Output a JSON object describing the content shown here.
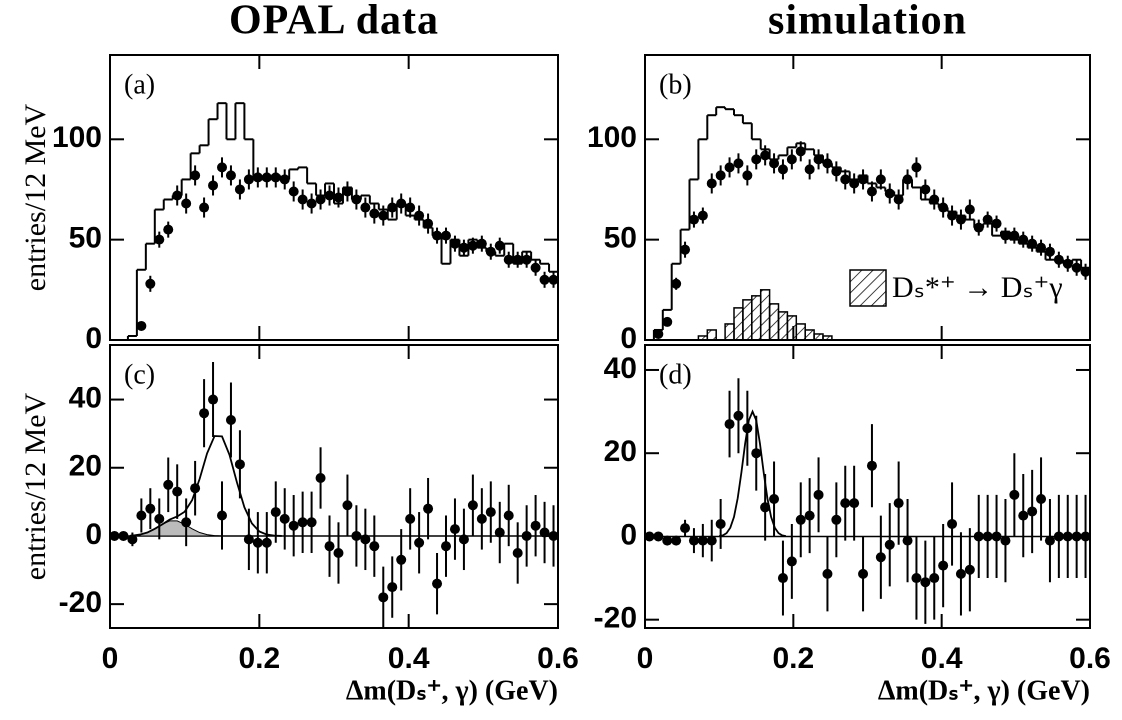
{
  "chart_data": [
    {
      "type": "step",
      "title": "OPAL data",
      "label": "(a)",
      "ylabel": "entries/12 MeV",
      "xlim": [
        0,
        0.6
      ],
      "xticks": [
        0,
        0.2,
        0.4,
        0.6
      ],
      "ylim": [
        0,
        142
      ],
      "yticks": [
        0,
        50,
        100
      ],
      "bins": [
        0,
        0.012,
        0.024,
        0.036,
        0.048,
        0.06,
        0.072,
        0.084,
        0.096,
        0.108,
        0.12,
        0.132,
        0.144,
        0.156,
        0.168,
        0.18,
        0.192,
        0.204,
        0.216,
        0.228,
        0.24,
        0.252,
        0.264,
        0.276,
        0.288,
        0.3,
        0.312,
        0.324,
        0.336,
        0.348,
        0.36,
        0.372,
        0.384,
        0.396,
        0.408,
        0.42,
        0.432,
        0.444,
        0.456,
        0.468,
        0.48,
        0.492,
        0.504,
        0.516,
        0.528,
        0.54,
        0.552,
        0.564,
        0.576,
        0.588,
        0.6
      ],
      "points": [
        null,
        null,
        null,
        7,
        28,
        50,
        55,
        72,
        68,
        82,
        66,
        77,
        86,
        82,
        75,
        80,
        81,
        81,
        81,
        80,
        74,
        70,
        68,
        70,
        72,
        71,
        74,
        70,
        66,
        63,
        62,
        66,
        68,
        66,
        62,
        58,
        52,
        52,
        48,
        46,
        47,
        48,
        44,
        47,
        40,
        40,
        40,
        36,
        30,
        30
      ],
      "errors": [
        null,
        null,
        null,
        2,
        4,
        4,
        4,
        5,
        5,
        5,
        5,
        5,
        5,
        5,
        5,
        5,
        5,
        5,
        5,
        5,
        5,
        5,
        5,
        5,
        5,
        5,
        5,
        5,
        5,
        5,
        5,
        5,
        5,
        5,
        5,
        5,
        4,
        4,
        4,
        4,
        4,
        4,
        4,
        4,
        4,
        4,
        4,
        4,
        4,
        4
      ],
      "hist": [
        0,
        0,
        2,
        35,
        48,
        65,
        70,
        72,
        80,
        93,
        97,
        110,
        118,
        100,
        118,
        100,
        80,
        80,
        82,
        80,
        85,
        86,
        78,
        72,
        78,
        68,
        76,
        70,
        72,
        68,
        65,
        60,
        68,
        62,
        60,
        56,
        52,
        38,
        50,
        42,
        50,
        46,
        44,
        42,
        48,
        38,
        44,
        40,
        38,
        34
      ]
    },
    {
      "type": "step",
      "title": "simulation",
      "label": "(b)",
      "xlim": [
        0,
        0.6
      ],
      "xticks": [
        0,
        0.2,
        0.4,
        0.6
      ],
      "ylim": [
        0,
        142
      ],
      "yticks": [
        0,
        50,
        100
      ],
      "bins": [
        0,
        0.012,
        0.024,
        0.036,
        0.048,
        0.06,
        0.072,
        0.084,
        0.096,
        0.108,
        0.12,
        0.132,
        0.144,
        0.156,
        0.168,
        0.18,
        0.192,
        0.204,
        0.216,
        0.228,
        0.24,
        0.252,
        0.264,
        0.276,
        0.288,
        0.3,
        0.312,
        0.324,
        0.336,
        0.348,
        0.36,
        0.372,
        0.384,
        0.396,
        0.408,
        0.42,
        0.432,
        0.444,
        0.456,
        0.468,
        0.48,
        0.492,
        0.504,
        0.516,
        0.528,
        0.54,
        0.552,
        0.564,
        0.576,
        0.588,
        0.6
      ],
      "points": [
        null,
        3,
        9,
        28,
        45,
        60,
        62,
        78,
        82,
        86,
        88,
        82,
        90,
        92,
        88,
        85,
        90,
        94,
        85,
        90,
        88,
        84,
        80,
        78,
        80,
        74,
        80,
        73,
        70,
        80,
        86,
        75,
        70,
        66,
        62,
        60,
        65,
        56,
        60,
        58,
        52,
        52,
        50,
        48,
        46,
        44,
        40,
        38,
        36,
        34
      ],
      "errors": [
        null,
        1,
        2,
        3,
        4,
        4,
        4,
        5,
        5,
        5,
        5,
        5,
        5,
        5,
        5,
        5,
        5,
        5,
        5,
        5,
        5,
        5,
        5,
        5,
        5,
        5,
        5,
        5,
        5,
        5,
        5,
        5,
        5,
        5,
        5,
        5,
        5,
        4,
        4,
        4,
        4,
        4,
        4,
        4,
        4,
        4,
        4,
        4,
        4,
        4
      ],
      "hist": [
        0,
        5,
        15,
        38,
        55,
        80,
        100,
        112,
        116,
        115,
        112,
        108,
        100,
        95,
        90,
        92,
        96,
        98,
        95,
        92,
        88,
        86,
        84,
        80,
        82,
        78,
        76,
        74,
        72,
        80,
        76,
        70,
        68,
        66,
        64,
        62,
        60,
        56,
        58,
        52,
        54,
        50,
        48,
        46,
        44,
        40,
        40,
        38,
        40,
        36
      ],
      "signal": [
        0,
        0,
        0,
        0,
        0,
        0,
        2,
        5,
        0,
        8,
        16,
        20,
        22,
        25,
        18,
        14,
        12,
        8,
        5,
        3,
        2,
        0,
        0,
        0,
        0,
        0,
        0,
        0,
        0,
        0,
        0,
        0,
        0,
        0,
        0,
        0,
        0,
        0,
        0,
        0,
        0,
        0,
        0,
        0,
        0,
        0,
        0,
        0,
        0,
        0
      ],
      "signal_label": "Dₛ*⁺ → Dₛ⁺γ"
    },
    {
      "type": "fit",
      "label": "(c)",
      "ylabel": "entries/12 MeV",
      "xlabel": "Δm(Dₛ⁺, γ)  (GeV)",
      "xlim": [
        0,
        0.6
      ],
      "xticks": [
        0,
        0.2,
        0.4,
        0.6
      ],
      "ylim": [
        -27,
        56
      ],
      "yticks": [
        -20,
        0,
        20,
        40
      ],
      "bins": [
        0,
        0.012,
        0.024,
        0.036,
        0.048,
        0.06,
        0.072,
        0.084,
        0.096,
        0.108,
        0.12,
        0.132,
        0.144,
        0.156,
        0.168,
        0.18,
        0.192,
        0.204,
        0.216,
        0.228,
        0.24,
        0.252,
        0.264,
        0.276,
        0.288,
        0.3,
        0.312,
        0.324,
        0.336,
        0.348,
        0.36,
        0.372,
        0.384,
        0.396,
        0.408,
        0.42,
        0.432,
        0.444,
        0.456,
        0.468,
        0.48,
        0.492,
        0.504,
        0.516,
        0.528,
        0.54,
        0.552,
        0.564,
        0.576,
        0.588,
        0.6
      ],
      "points": [
        0,
        0,
        -1,
        6,
        8,
        5,
        15,
        13,
        4,
        14,
        36,
        40,
        6,
        34,
        21,
        -1,
        -2,
        -2,
        7,
        5,
        3,
        4,
        4,
        17,
        -3,
        -5,
        9,
        0,
        -1,
        -3,
        -18,
        -15,
        -7,
        5,
        -2,
        8,
        -14,
        -3,
        2,
        -1,
        9,
        5,
        7,
        1,
        6,
        -5,
        0,
        3,
        1,
        0
      ],
      "errors": [
        1,
        1,
        2,
        5,
        6,
        6,
        8,
        8,
        7,
        8,
        10,
        11,
        10,
        11,
        10,
        9,
        9,
        9,
        9,
        9,
        9,
        9,
        9,
        9,
        9,
        9,
        9,
        9,
        9,
        9,
        9,
        9,
        9,
        9,
        9,
        9,
        9,
        9,
        9,
        9,
        9,
        9,
        9,
        9,
        9,
        9,
        9,
        9,
        9,
        9
      ],
      "fit": {
        "x": [
          0.03,
          0.04,
          0.05,
          0.06,
          0.07,
          0.08,
          0.09,
          0.1,
          0.11,
          0.12,
          0.13,
          0.14,
          0.15,
          0.16,
          0.17,
          0.18,
          0.19,
          0.2,
          0.21,
          0.22,
          0.23
        ],
        "y": [
          0.1,
          0.4,
          1,
          2.1,
          3.4,
          4.8,
          5.7,
          7.1,
          10.5,
          16.7,
          24.2,
          29.3,
          29.2,
          23.8,
          15.7,
          8.4,
          3.7,
          1.3,
          0.4,
          0.1,
          0
        ],
        "bkg": [
          0.1,
          0.4,
          1,
          2.1,
          3.4,
          4.4,
          4.4,
          3.4,
          2.1,
          1,
          0.4,
          0.1,
          0,
          0,
          0,
          0,
          0,
          0,
          0,
          0,
          0
        ]
      }
    },
    {
      "type": "fit",
      "label": "(d)",
      "xlabel": "Δm(Dₛ⁺, γ)  (GeV)",
      "xlim": [
        0,
        0.6
      ],
      "xticks": [
        0,
        0.2,
        0.4,
        0.6
      ],
      "ylim": [
        -22,
        46
      ],
      "yticks": [
        -20,
        0,
        20,
        40
      ],
      "bins": [
        0,
        0.012,
        0.024,
        0.036,
        0.048,
        0.06,
        0.072,
        0.084,
        0.096,
        0.108,
        0.12,
        0.132,
        0.144,
        0.156,
        0.168,
        0.18,
        0.192,
        0.204,
        0.216,
        0.228,
        0.24,
        0.252,
        0.264,
        0.276,
        0.288,
        0.3,
        0.312,
        0.324,
        0.336,
        0.348,
        0.36,
        0.372,
        0.384,
        0.396,
        0.408,
        0.42,
        0.432,
        0.444,
        0.456,
        0.468,
        0.48,
        0.492,
        0.504,
        0.516,
        0.528,
        0.54,
        0.552,
        0.564,
        0.576,
        0.588,
        0.6
      ],
      "points": [
        0,
        0,
        -1,
        -1,
        2,
        -1,
        -1,
        -1,
        3,
        27,
        29,
        26,
        20,
        7,
        9,
        -10,
        -6,
        4,
        5,
        10,
        -9,
        4,
        8,
        8,
        -9,
        17,
        -5,
        -2,
        8,
        -1,
        -10,
        -11,
        -10,
        -7,
        3,
        -9,
        -8,
        0,
        0,
        0,
        -1,
        10,
        5,
        6,
        9,
        -1,
        0,
        0,
        0,
        0
      ],
      "errors": [
        1,
        1,
        1,
        1,
        2,
        3,
        4,
        5,
        6,
        8,
        9,
        9,
        9,
        8,
        9,
        9,
        9,
        9,
        9,
        9,
        9,
        9,
        9,
        9,
        9,
        10,
        10,
        10,
        10,
        10,
        10,
        10,
        10,
        10,
        10,
        10,
        10,
        10,
        10,
        10,
        10,
        10,
        10,
        10,
        10,
        10,
        10,
        10,
        10,
        10
      ],
      "fit": {
        "x": [
          0.1,
          0.105,
          0.11,
          0.115,
          0.12,
          0.125,
          0.13,
          0.135,
          0.14,
          0.145,
          0.15,
          0.155,
          0.16,
          0.165,
          0.17,
          0.175,
          0.18,
          0.185,
          0.19
        ],
        "y": [
          0.07,
          0.26,
          0.8,
          2.1,
          4.7,
          9.2,
          15.4,
          22.3,
          27.9,
          30,
          27.9,
          22.3,
          15.4,
          9.2,
          4.7,
          2.1,
          0.8,
          0.26,
          0.07
        ]
      }
    }
  ]
}
